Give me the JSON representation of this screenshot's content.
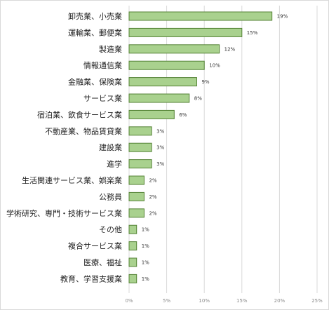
{
  "chart_data": {
    "type": "bar",
    "orientation": "horizontal",
    "categories": [
      "卸売業、小売業",
      "運輸業、郵便業",
      "製造業",
      "情報通信業",
      "金融業、保険業",
      "サービス業",
      "宿泊業、飲食サービス業",
      "不動産業、物品賃貸業",
      "建設業",
      "進学",
      "生活関連サービス業、娯楽業",
      "公務員",
      "学術研究、専門・技術サービス業",
      "その他",
      "複合サービス業",
      "医療、福祉",
      "教育、学習支援業"
    ],
    "values": [
      19,
      15,
      12,
      10,
      9,
      8,
      6,
      3,
      3,
      3,
      2,
      2,
      2,
      1,
      1,
      1,
      1
    ],
    "value_labels": [
      "19%",
      "15%",
      "12%",
      "10%",
      "9%",
      "8%",
      "6%",
      "3%",
      "3%",
      "3%",
      "2%",
      "2%",
      "2%",
      "1%",
      "1%",
      "1%",
      "1%"
    ],
    "xlim": [
      0,
      25
    ],
    "x_ticks": [
      0,
      5,
      10,
      15,
      20,
      25
    ],
    "x_tick_labels": [
      "0%",
      "5%",
      "10%",
      "15%",
      "20%",
      "25%"
    ],
    "grid": true,
    "legend": "none",
    "title": "",
    "xlabel": "",
    "ylabel": "",
    "colors": {
      "bar_fill": "#a9d18e",
      "bar_stroke": "#548235",
      "grid": "#d9d9d9",
      "frame": "#d9d9d9"
    }
  }
}
